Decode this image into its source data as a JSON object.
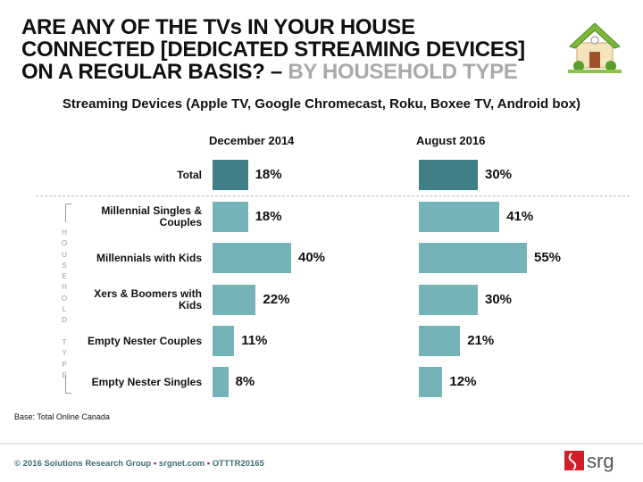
{
  "title": {
    "main": "ARE ANY OF THE TVs IN YOUR HOUSE CONNECTED [DEDICATED STREAMING DEVICES] ON A REGULAR BASIS? – ",
    "highlight": "BY HOUSEHOLD TYPE"
  },
  "chart_data": {
    "type": "bar",
    "title": "Streaming Devices (Apple TV, Google Chromecast, Roku, Boxee TV,  Android box)",
    "categories": [
      "Total",
      "Millennial Singles & Couples",
      "Millennials with Kids",
      "Xers & Boomers with Kids",
      "Empty Nester Couples",
      "Empty Nester Singles"
    ],
    "group_label": "HOUSEHOLD TYPE",
    "series": [
      {
        "name": "December 2014",
        "values": [
          18,
          18,
          40,
          22,
          11,
          8
        ]
      },
      {
        "name": "August 2016",
        "values": [
          30,
          41,
          55,
          30,
          21,
          12
        ]
      }
    ],
    "unit": "%",
    "colors": {
      "total": "#3f7e85",
      "other": "#74b4b8"
    }
  },
  "base": "Base: Total Online Canada",
  "footer": {
    "copyright": "© 2016 Solutions Research Group",
    "site": "srgnet.com",
    "code": "OTTTR20165",
    "sep": "▪"
  },
  "logo": "srg"
}
